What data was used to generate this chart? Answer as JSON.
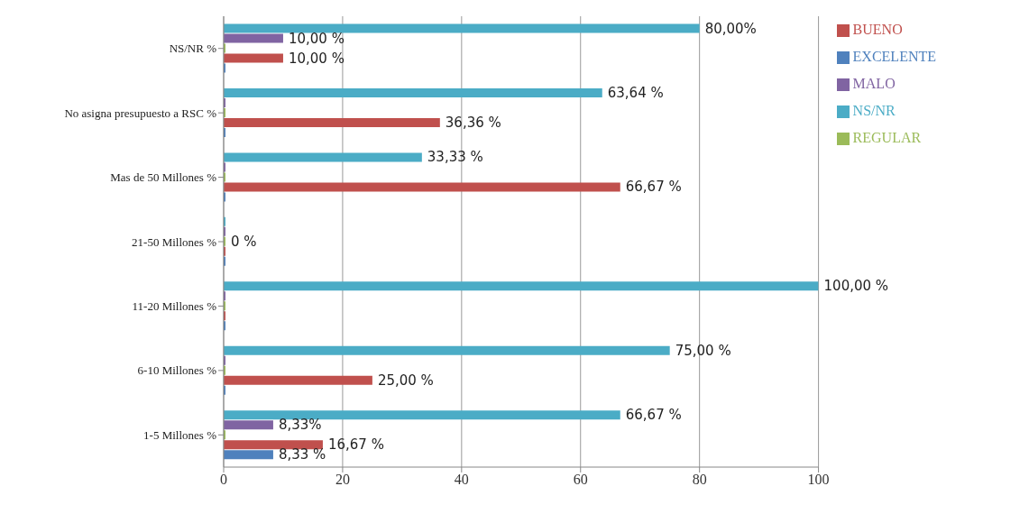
{
  "chart_data": {
    "type": "bar",
    "orientation": "horizontal",
    "categories": [
      "NS/NR %",
      "No asigna presupuesto a RSC %",
      "Mas de 50 Millones %",
      "21-50 Millones %",
      "11-20 Millones %",
      "6-10 Millones %",
      "1-5 Millones %"
    ],
    "series": [
      {
        "name": "NS/NR",
        "color": "#4bacc6",
        "values": [
          80,
          63.64,
          33.33,
          0,
          100,
          75,
          66.67
        ],
        "value_labels": [
          "80,00%",
          "63,64 %",
          "33,33 %",
          null,
          "100,00 %",
          "75,00 %",
          "66,67 %"
        ]
      },
      {
        "name": "MALO",
        "color": "#8064a2",
        "values": [
          10,
          0,
          0,
          0,
          0,
          0,
          8.33
        ],
        "value_labels": [
          "10,00 %",
          null,
          null,
          null,
          null,
          null,
          "8,33%"
        ]
      },
      {
        "name": "REGULAR",
        "color": "#9bbb59",
        "values": [
          0,
          0,
          0,
          0,
          0,
          0,
          0
        ],
        "value_labels": [
          null,
          null,
          null,
          "0 %",
          null,
          null,
          null
        ]
      },
      {
        "name": "BUENO",
        "color": "#c0504d",
        "values": [
          10,
          36.36,
          66.67,
          0,
          0,
          25,
          16.67
        ],
        "value_labels": [
          "10,00 %",
          "36,36 %",
          "66,67 %",
          null,
          null,
          "25,00 %",
          "16,67 %"
        ]
      },
      {
        "name": "EXCELENTE",
        "color": "#4f81bd",
        "values": [
          0,
          0,
          0,
          0,
          0,
          0,
          8.33
        ],
        "value_labels": [
          null,
          null,
          null,
          null,
          null,
          null,
          "8,33 %"
        ]
      }
    ],
    "xlim": [
      0,
      100
    ],
    "xticks": [
      0,
      20,
      40,
      60,
      80,
      100
    ],
    "grid": "x",
    "legend": "right"
  }
}
